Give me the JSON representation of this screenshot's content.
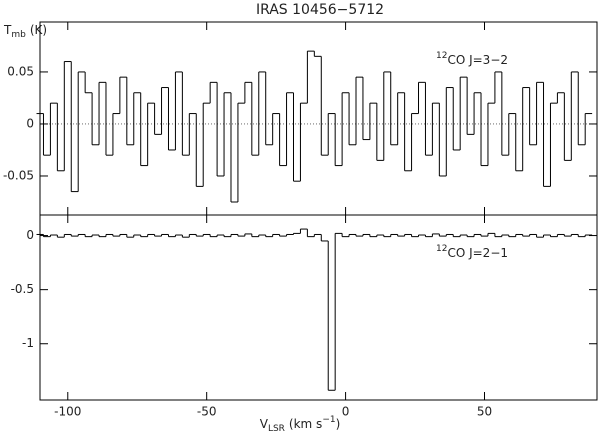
{
  "title": "IRAS 10456−5712",
  "chart_data": [
    {
      "type": "step",
      "ylabel": {
        "main": "T",
        "sub": "mb",
        "unit": "(K)"
      },
      "annotation": {
        "sup": "12",
        "text": "CO J=3−2"
      },
      "xlim": [
        -110,
        90.5
      ],
      "ylim": [
        -0.0875,
        0.098
      ],
      "yticks": [
        -0.05,
        0,
        0.05
      ],
      "color": "#000000",
      "x": [
        -110,
        -107.5,
        -105,
        -102.5,
        -100,
        -97.5,
        -95,
        -92.5,
        -90,
        -87.5,
        -85,
        -82.5,
        -80,
        -77.5,
        -75,
        -72.5,
        -70,
        -67.5,
        -65,
        -62.5,
        -60,
        -57.5,
        -55,
        -52.5,
        -50,
        -47.5,
        -45,
        -42.5,
        -40,
        -37.5,
        -35,
        -32.5,
        -30,
        -27.5,
        -25,
        -22.5,
        -20,
        -17.5,
        -15,
        -12.5,
        -10,
        -7.5,
        -5,
        -2.5,
        0,
        2.5,
        5,
        7.5,
        10,
        12.5,
        15,
        17.5,
        20,
        22.5,
        25,
        27.5,
        30,
        32.5,
        35,
        37.5,
        40,
        42.5,
        45,
        47.5,
        50,
        52.5,
        55,
        57.5,
        60,
        62.5,
        65,
        67.5,
        70,
        72.5,
        75,
        77.5,
        80,
        82.5,
        85,
        87.5
      ],
      "values": [
        0.01,
        -0.03,
        0.02,
        -0.045,
        0.06,
        -0.065,
        0.05,
        0.03,
        -0.02,
        0.04,
        -0.03,
        0.01,
        0.045,
        -0.02,
        0.03,
        -0.04,
        0.02,
        -0.01,
        0.035,
        -0.025,
        0.05,
        -0.03,
        0.01,
        -0.06,
        0.02,
        0.04,
        -0.05,
        0.03,
        -0.075,
        0.02,
        0.04,
        -0.03,
        0.05,
        -0.02,
        0.01,
        -0.04,
        0.03,
        -0.055,
        0.02,
        0.07,
        0.065,
        -0.03,
        0.01,
        -0.04,
        0.03,
        -0.02,
        0.045,
        -0.015,
        0.02,
        -0.035,
        0.05,
        -0.02,
        0.03,
        -0.045,
        0.01,
        0.04,
        -0.03,
        0.02,
        -0.05,
        0.035,
        -0.025,
        0.045,
        -0.01,
        0.03,
        -0.04,
        0.02,
        0.05,
        -0.03,
        0.01,
        -0.045,
        0.035,
        -0.02,
        0.04,
        -0.06,
        0.02,
        0.03,
        -0.035,
        0.05,
        -0.02,
        0.01
      ]
    },
    {
      "type": "step",
      "xlabel": {
        "main": "V",
        "sub": "LSR",
        "unit": "(km s",
        "sup": "−1",
        "close": ")"
      },
      "annotation": {
        "sup": "12",
        "text": "CO J=2−1"
      },
      "xlim": [
        -110,
        90.5
      ],
      "ylim": [
        -1.52,
        0.19
      ],
      "xticks": [
        -100,
        -50,
        0,
        50
      ],
      "yticks": [
        -1,
        -0.5,
        0
      ],
      "color": "#000000",
      "x": [
        -110,
        -107.5,
        -105,
        -102.5,
        -100,
        -97.5,
        -95,
        -92.5,
        -90,
        -87.5,
        -85,
        -82.5,
        -80,
        -77.5,
        -75,
        -72.5,
        -70,
        -67.5,
        -65,
        -62.5,
        -60,
        -57.5,
        -55,
        -52.5,
        -50,
        -47.5,
        -45,
        -42.5,
        -40,
        -37.5,
        -35,
        -32.5,
        -30,
        -27.5,
        -25,
        -22.5,
        -20,
        -17.5,
        -15,
        -12.5,
        -10,
        -7.5,
        -5,
        -2.5,
        0,
        2.5,
        5,
        7.5,
        10,
        12.5,
        15,
        17.5,
        20,
        22.5,
        25,
        27.5,
        30,
        32.5,
        35,
        37.5,
        40,
        42.5,
        45,
        47.5,
        50,
        52.5,
        55,
        57.5,
        60,
        62.5,
        65,
        67.5,
        70,
        72.5,
        75,
        77.5,
        80,
        82.5,
        85,
        87.5
      ],
      "values": [
        0.01,
        -0.01,
        0.005,
        -0.015,
        0.01,
        -0.005,
        0.01,
        -0.01,
        0.005,
        -0.01,
        0.01,
        -0.005,
        0.01,
        -0.015,
        0.005,
        -0.01,
        0.01,
        -0.005,
        0.01,
        -0.01,
        0.005,
        -0.015,
        0.01,
        -0.005,
        0.01,
        -0.01,
        0.005,
        -0.01,
        0.01,
        -0.005,
        0.015,
        -0.01,
        0.005,
        -0.01,
        0.01,
        -0.005,
        0.01,
        0.02,
        0.06,
        -0.01,
        0.01,
        -0.05,
        -1.43,
        0.02,
        -0.01,
        0.01,
        -0.005,
        0.01,
        -0.01,
        0.005,
        -0.01,
        0.01,
        -0.005,
        0.01,
        -0.01,
        0.005,
        -0.01,
        0.015,
        -0.005,
        0.01,
        -0.01,
        0.005,
        -0.01,
        0.01,
        -0.005,
        0.02,
        -0.01,
        0.005,
        -0.01,
        0.01,
        -0.005,
        0.01,
        -0.015,
        0.005,
        -0.01,
        0.01,
        -0.005,
        0.01,
        -0.01,
        0.005
      ]
    }
  ]
}
